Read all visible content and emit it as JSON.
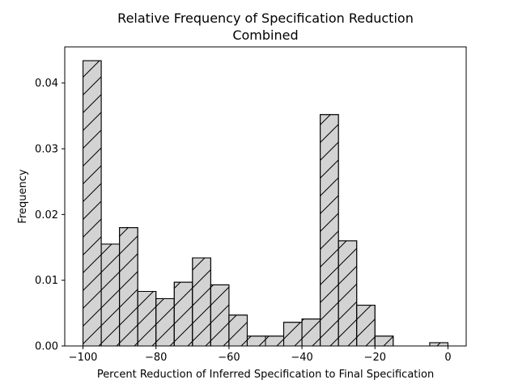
{
  "chart_data": {
    "type": "bar",
    "title": "Relative Frequency of Specification Reduction",
    "subtitle": "Combined",
    "xlabel": "Percent Reduction of Inferred Specification to Final Specification",
    "ylabel": "Frequency",
    "xlim": [
      -105,
      5
    ],
    "ylim": [
      0,
      0.0455
    ],
    "xticks": [
      -100,
      -80,
      -60,
      -40,
      -20,
      0
    ],
    "yticks": [
      0.0,
      0.01,
      0.02,
      0.03,
      0.04
    ],
    "ytick_labels": [
      "0.00",
      "0.01",
      "0.02",
      "0.03",
      "0.04"
    ],
    "bin_width": 5,
    "bins": [
      {
        "x0": -100,
        "x1": -95,
        "value": 0.0434
      },
      {
        "x0": -95,
        "x1": -90,
        "value": 0.0155
      },
      {
        "x0": -90,
        "x1": -85,
        "value": 0.018
      },
      {
        "x0": -85,
        "x1": -80,
        "value": 0.0083
      },
      {
        "x0": -80,
        "x1": -75,
        "value": 0.0072
      },
      {
        "x0": -75,
        "x1": -70,
        "value": 0.0097
      },
      {
        "x0": -70,
        "x1": -65,
        "value": 0.0134
      },
      {
        "x0": -65,
        "x1": -60,
        "value": 0.0093
      },
      {
        "x0": -60,
        "x1": -55,
        "value": 0.0047
      },
      {
        "x0": -55,
        "x1": -50,
        "value": 0.0015
      },
      {
        "x0": -50,
        "x1": -45,
        "value": 0.0015
      },
      {
        "x0": -45,
        "x1": -40,
        "value": 0.0036
      },
      {
        "x0": -40,
        "x1": -35,
        "value": 0.0041
      },
      {
        "x0": -35,
        "x1": -30,
        "value": 0.0352
      },
      {
        "x0": -30,
        "x1": -25,
        "value": 0.016
      },
      {
        "x0": -25,
        "x1": -20,
        "value": 0.0062
      },
      {
        "x0": -20,
        "x1": -15,
        "value": 0.0015
      },
      {
        "x0": -15,
        "x1": -10,
        "value": 0.0
      },
      {
        "x0": -10,
        "x1": -5,
        "value": 0.0
      },
      {
        "x0": -5,
        "x1": 0,
        "value": 0.0005
      }
    ],
    "grid": false,
    "hatch": "forward-diagonal",
    "colors": {
      "fill": "#d3d3d3",
      "edge": "#000000"
    }
  }
}
